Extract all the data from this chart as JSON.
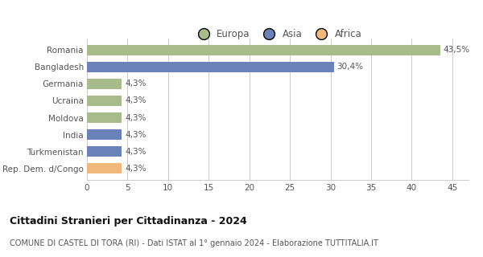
{
  "categories": [
    "Romania",
    "Bangladesh",
    "Germania",
    "Ucraina",
    "Moldova",
    "India",
    "Turkmenistan",
    "Rep. Dem. d/Congo"
  ],
  "values": [
    43.5,
    30.4,
    4.3,
    4.3,
    4.3,
    4.3,
    4.3,
    4.3
  ],
  "labels": [
    "43,5%",
    "30,4%",
    "4,3%",
    "4,3%",
    "4,3%",
    "4,3%",
    "4,3%",
    "4,3%"
  ],
  "bar_colors": [
    "#a8bb8a",
    "#6b82b8",
    "#a8bb8a",
    "#a8bb8a",
    "#a8bb8a",
    "#6b82b8",
    "#6b82b8",
    "#f0b87a"
  ],
  "legend_labels": [
    "Europa",
    "Asia",
    "Africa"
  ],
  "legend_colors": [
    "#a8bb8a",
    "#6b82b8",
    "#f0b87a"
  ],
  "xlim": [
    0,
    47
  ],
  "xticks": [
    0,
    5,
    10,
    15,
    20,
    25,
    30,
    35,
    40,
    45
  ],
  "title": "Cittadini Stranieri per Cittadinanza - 2024",
  "subtitle": "COMUNE DI CASTEL DI TORA (RI) - Dati ISTAT al 1° gennaio 2024 - Elaborazione TUTTITALIA.IT",
  "title_fontsize": 9,
  "subtitle_fontsize": 7,
  "label_fontsize": 7.5,
  "tick_fontsize": 7.5,
  "legend_fontsize": 8.5,
  "background_color": "#ffffff",
  "grid_color": "#cccccc"
}
